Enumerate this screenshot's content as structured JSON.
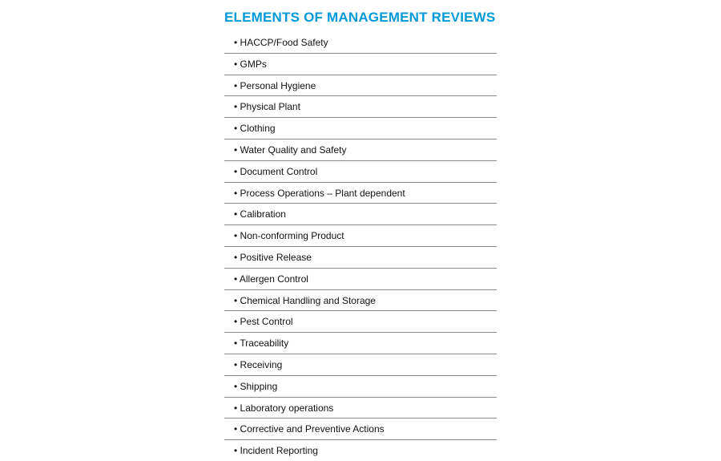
{
  "title": "ELEMENTS OF MANAGEMENT REVIEWS",
  "title_color": "#0099d8",
  "title_fontsize": 17,
  "item_fontsize": 12,
  "item_color": "#111111",
  "border_color": "#888888",
  "background_color": "#ffffff",
  "items": [
    "HACCP/Food Safety",
    "GMPs",
    "Personal Hygiene",
    "Physical Plant",
    "Clothing",
    "Water Quality and Safety",
    "Document Control",
    "Process Operations – Plant dependent",
    "Calibration",
    "Non-conforming Product",
    "Positive Release",
    "Allergen Control",
    "Chemical Handling and Storage",
    "Pest Control",
    "Traceability",
    "Receiving",
    "Shipping",
    "Laboratory operations",
    "Corrective and Preventive Actions",
    "Incident Reporting"
  ]
}
